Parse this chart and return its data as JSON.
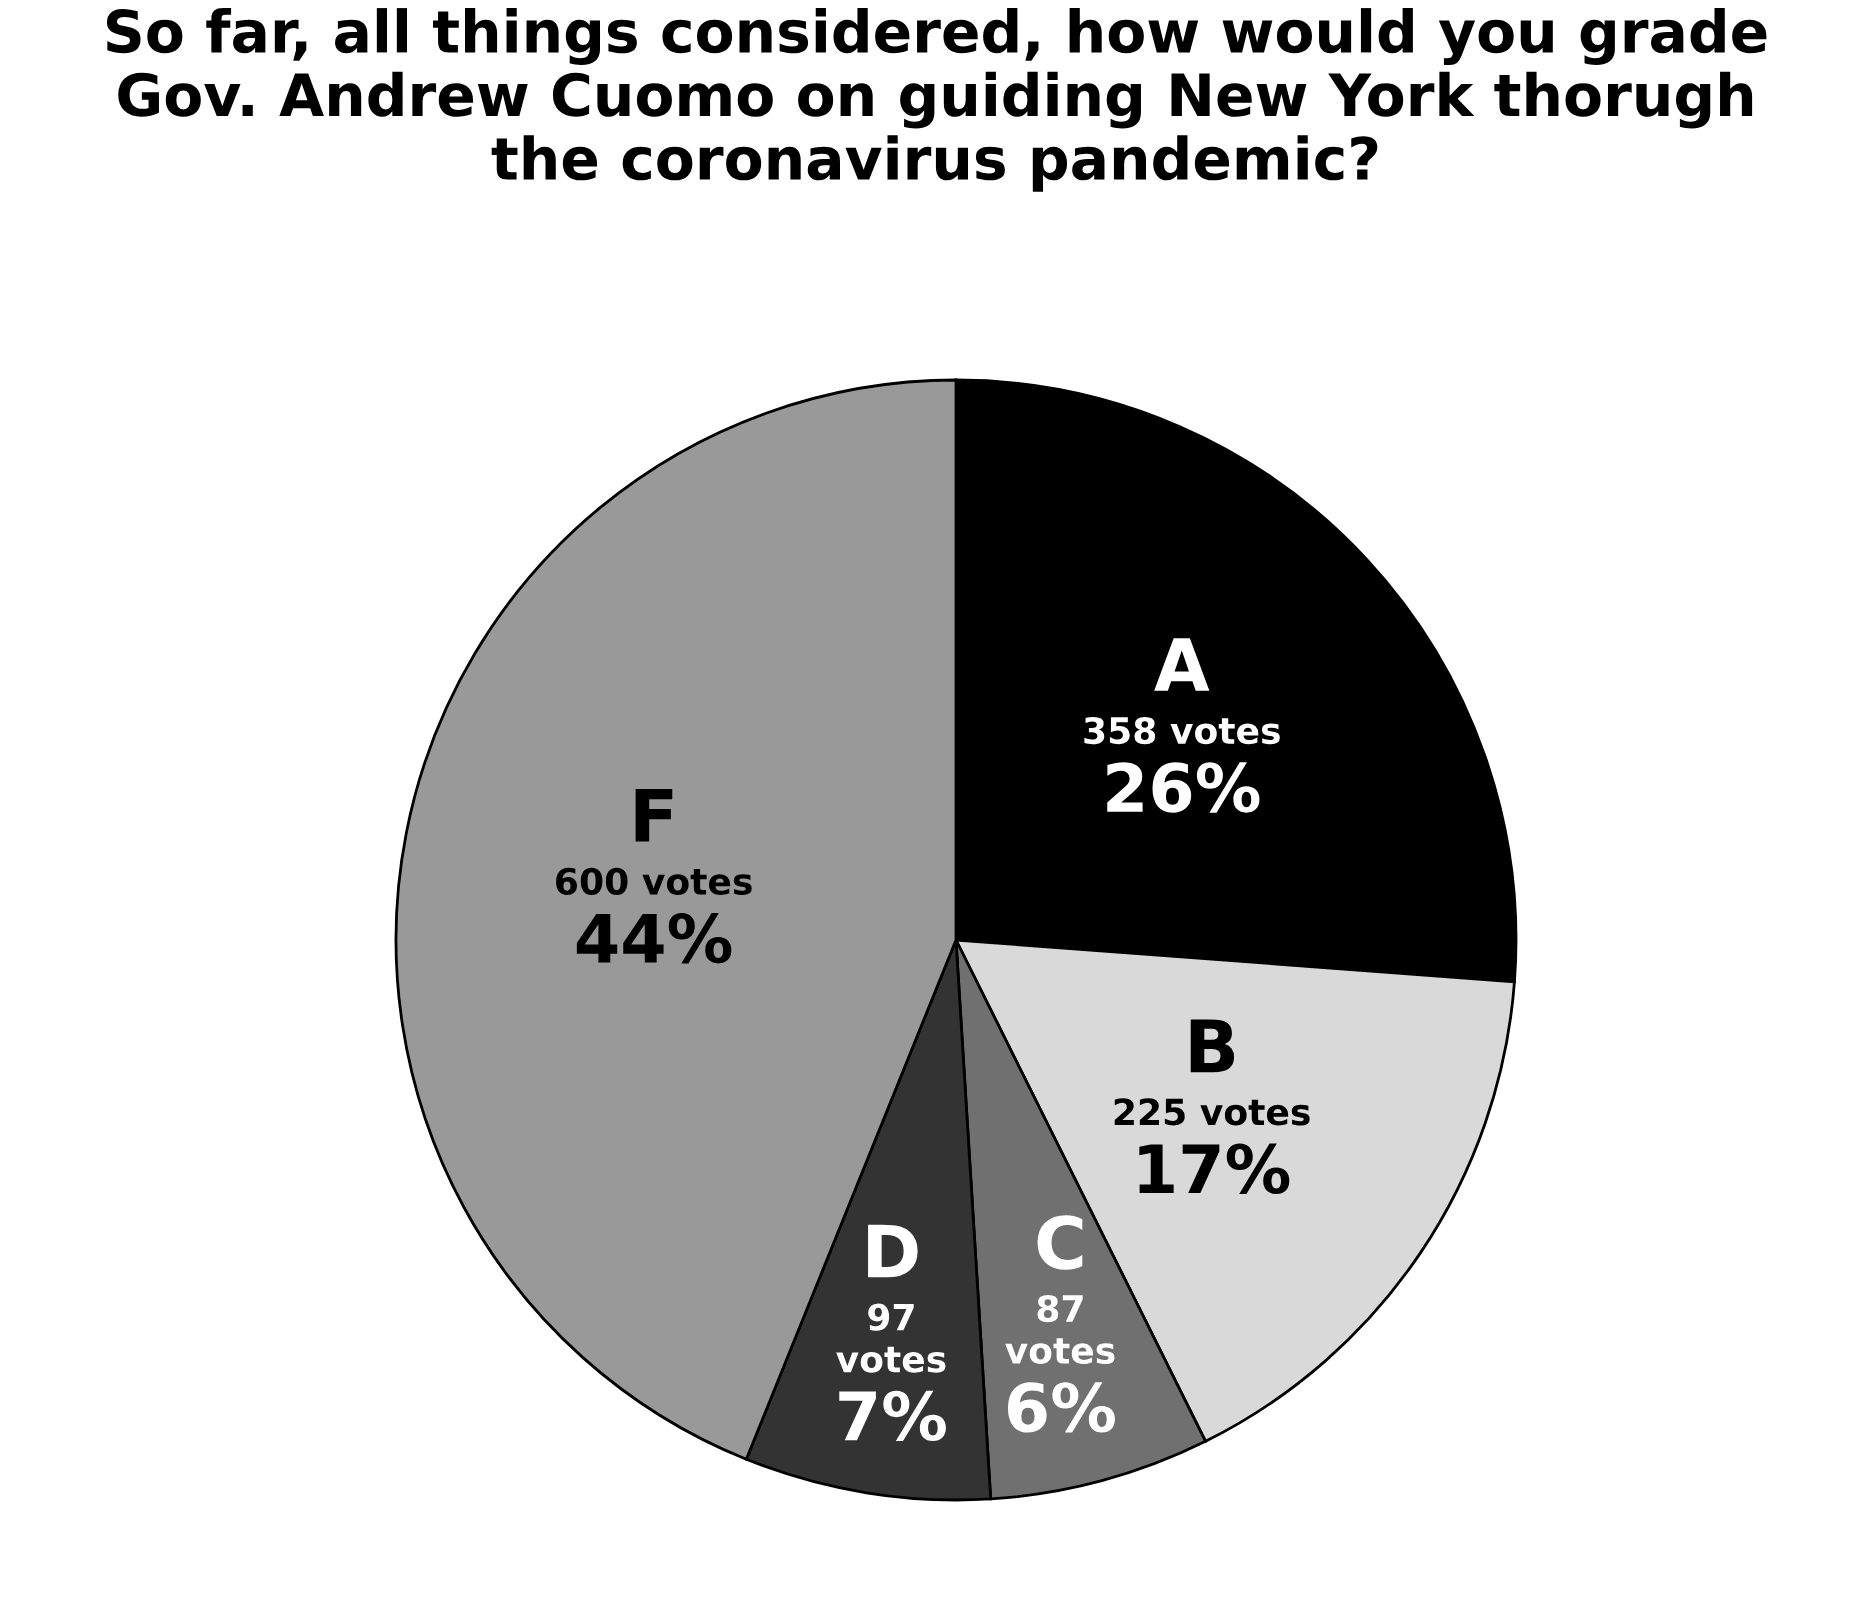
{
  "chart_data": {
    "type": "pie",
    "title": "So far, all things considered, how would you grade\nGov. Andrew Cuomo on guiding New York thorugh\nthe coronavirus pandemic?",
    "categories": [
      "A",
      "B",
      "C",
      "D",
      "F"
    ],
    "values": [
      358,
      225,
      87,
      97,
      600
    ],
    "colors": [
      "#000000",
      "#d9d9d9",
      "#707070",
      "#333333",
      "#999999"
    ],
    "value_labels": [
      "358 votes\n26%",
      "225 votes\n17%",
      "87\nvotes\n6%",
      "97\nvotes\n7%",
      "600 votes\n44%"
    ],
    "legend": false
  }
}
